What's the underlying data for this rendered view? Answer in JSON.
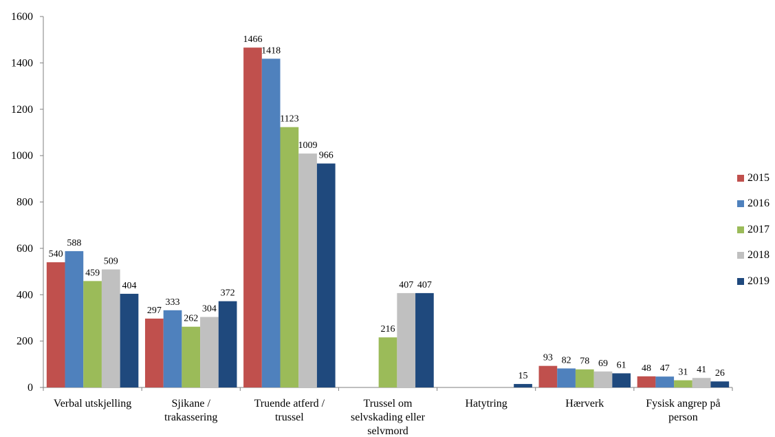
{
  "chart_data": {
    "type": "bar",
    "title": "",
    "xlabel": "",
    "ylabel": "",
    "ylim": [
      0,
      1600
    ],
    "yticks": [
      0,
      200,
      400,
      600,
      800,
      1000,
      1200,
      1400,
      1600
    ],
    "grid": false,
    "legend_position": "right",
    "categories": [
      "Verbal utskjelling",
      "Sjikane / trakassering",
      "Truende atferd / trussel",
      "Trussel om selvskading eller selvmord",
      "Hatytring",
      "Hærverk",
      "Fysisk angrep på person"
    ],
    "category_lines": [
      [
        "Verbal utskjelling"
      ],
      [
        "Sjikane /",
        "trakassering"
      ],
      [
        "Truende atferd /",
        "trussel"
      ],
      [
        "Trussel om",
        "selvskading eller",
        "selvmord"
      ],
      [
        "Hatytring"
      ],
      [
        "Hærverk"
      ],
      [
        "Fysisk angrep på",
        "person"
      ]
    ],
    "series": [
      {
        "name": "2015",
        "color": "#c0504d",
        "values": [
          540,
          297,
          1466,
          null,
          null,
          93,
          48
        ]
      },
      {
        "name": "2016",
        "color": "#4f81bd",
        "values": [
          588,
          333,
          1418,
          null,
          null,
          82,
          47
        ]
      },
      {
        "name": "2017",
        "color": "#9bbb59",
        "values": [
          459,
          262,
          1123,
          216,
          null,
          78,
          31
        ]
      },
      {
        "name": "2018",
        "color": "#c0c0c0",
        "values": [
          509,
          304,
          1009,
          407,
          null,
          69,
          41
        ]
      },
      {
        "name": "2019",
        "color": "#1f497d",
        "values": [
          404,
          372,
          966,
          407,
          15,
          61,
          26
        ]
      }
    ]
  }
}
